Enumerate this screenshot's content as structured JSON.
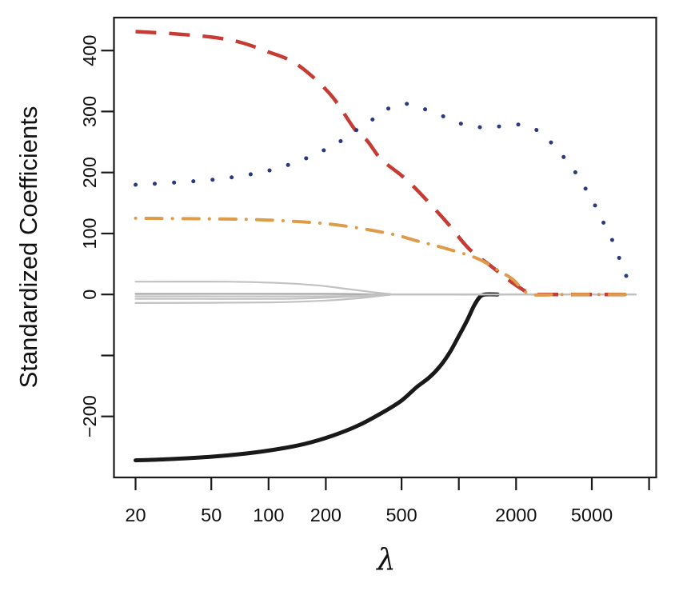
{
  "chart_data": {
    "type": "line",
    "title": "",
    "xlabel": "λ",
    "ylabel": "Standardized Coefficients",
    "x_scale": "log10",
    "xlim": [
      15.4,
      10900
    ],
    "ylim": [
      -300,
      454
    ],
    "grid": false,
    "legend": "none",
    "background_color": "#ffffff",
    "axis_color": "#1a1a1a",
    "tick_label_color": "#111111",
    "x_ticks": [
      {
        "v": 20,
        "label": "20"
      },
      {
        "v": 50,
        "label": "50"
      },
      {
        "v": 100,
        "label": "100"
      },
      {
        "v": 200,
        "label": "200"
      },
      {
        "v": 500,
        "label": "500"
      },
      {
        "v": 1000,
        "label": ""
      },
      {
        "v": 2000,
        "label": "2000"
      },
      {
        "v": 5000,
        "label": "5000"
      },
      {
        "v": 10000,
        "label": ""
      }
    ],
    "y_ticks": [
      {
        "v": 400,
        "label": "400"
      },
      {
        "v": 300,
        "label": "300"
      },
      {
        "v": 200,
        "label": "200"
      },
      {
        "v": 100,
        "label": "100"
      },
      {
        "v": 0,
        "label": "0"
      },
      {
        "v": -100,
        "label": ""
      },
      {
        "v": -200,
        "label": "−200"
      }
    ],
    "series": [
      {
        "name": "black-solid",
        "color": "#191919",
        "style": "solid",
        "width": 5,
        "points": [
          [
            20,
            -272
          ],
          [
            30,
            -270
          ],
          [
            50,
            -266
          ],
          [
            70,
            -262
          ],
          [
            100,
            -256
          ],
          [
            150,
            -246
          ],
          [
            215,
            -232
          ],
          [
            300,
            -214
          ],
          [
            410,
            -191
          ],
          [
            500,
            -174
          ],
          [
            600,
            -152
          ],
          [
            700,
            -136
          ],
          [
            800,
            -117
          ],
          [
            900,
            -94
          ],
          [
            1000,
            -68
          ],
          [
            1100,
            -44
          ],
          [
            1200,
            -19
          ],
          [
            1290,
            -4
          ],
          [
            1380,
            0
          ],
          [
            1600,
            0
          ]
        ]
      },
      {
        "name": "gray-1",
        "color": "#c2c2c2",
        "style": "solid",
        "width": 2.2,
        "points": [
          [
            20,
            21
          ],
          [
            60,
            21
          ],
          [
            110,
            19
          ],
          [
            180,
            15
          ],
          [
            260,
            9
          ],
          [
            350,
            4
          ],
          [
            430,
            1
          ],
          [
            520,
            0
          ],
          [
            2000,
            0
          ],
          [
            5000,
            0
          ],
          [
            8500,
            0
          ]
        ]
      },
      {
        "name": "gray-2",
        "color": "#a6a6a6",
        "style": "solid",
        "width": 2.2,
        "points": [
          [
            20,
            1
          ],
          [
            200,
            1
          ],
          [
            400,
            0
          ],
          [
            2000,
            0
          ],
          [
            8500,
            0
          ]
        ]
      },
      {
        "name": "gray-3",
        "color": "#c2c2c2",
        "style": "solid",
        "width": 2.2,
        "points": [
          [
            20,
            -3
          ],
          [
            150,
            -3
          ],
          [
            300,
            -2
          ],
          [
            430,
            0
          ],
          [
            2000,
            0
          ],
          [
            8500,
            0
          ]
        ]
      },
      {
        "name": "gray-4",
        "color": "#c2c2c2",
        "style": "solid",
        "width": 2.2,
        "points": [
          [
            20,
            -7
          ],
          [
            120,
            -7
          ],
          [
            250,
            -4
          ],
          [
            400,
            -1
          ],
          [
            500,
            0
          ],
          [
            2000,
            0
          ],
          [
            8500,
            0
          ]
        ]
      },
      {
        "name": "gray-5",
        "color": "#c2c2c2",
        "style": "solid",
        "width": 2.2,
        "points": [
          [
            20,
            -14
          ],
          [
            100,
            -13
          ],
          [
            200,
            -10
          ],
          [
            300,
            -6
          ],
          [
            420,
            -1
          ],
          [
            520,
            0
          ],
          [
            2000,
            0
          ],
          [
            8500,
            0
          ]
        ]
      },
      {
        "name": "red-dashed",
        "color": "#c63c35",
        "style": "dashed",
        "width": 4.5,
        "points": [
          [
            20,
            431
          ],
          [
            30,
            428
          ],
          [
            50,
            422
          ],
          [
            70,
            414
          ],
          [
            95,
            400
          ],
          [
            140,
            378
          ],
          [
            210,
            329
          ],
          [
            285,
            270
          ],
          [
            330,
            252
          ],
          [
            390,
            222
          ],
          [
            500,
            195
          ],
          [
            600,
            172
          ],
          [
            855,
            120
          ],
          [
            1130,
            75
          ],
          [
            1470,
            47
          ],
          [
            1900,
            20
          ],
          [
            2300,
            3
          ],
          [
            2450,
            0
          ],
          [
            3500,
            0
          ],
          [
            5500,
            0
          ],
          [
            8500,
            0
          ]
        ]
      },
      {
        "name": "orange-dashdot",
        "color": "#dd9c49",
        "style": "dashdot",
        "width": 4,
        "dash_offset": 33,
        "points": [
          [
            20,
            125
          ],
          [
            50,
            124
          ],
          [
            100,
            122
          ],
          [
            215,
            115
          ],
          [
            430,
            100
          ],
          [
            600,
            88
          ],
          [
            820,
            77
          ],
          [
            1230,
            60
          ],
          [
            1600,
            40
          ],
          [
            1900,
            26
          ],
          [
            2100,
            13
          ],
          [
            2400,
            0
          ],
          [
            3500,
            0
          ],
          [
            5500,
            0
          ],
          [
            8500,
            0
          ]
        ]
      },
      {
        "name": "blue-dotted",
        "color": "#2b3a7d",
        "style": "dotted",
        "width": 5,
        "points": [
          [
            20,
            180
          ],
          [
            30,
            183
          ],
          [
            50,
            188
          ],
          [
            70,
            194
          ],
          [
            100,
            203
          ],
          [
            140,
            217
          ],
          [
            185,
            233
          ],
          [
            235,
            250
          ],
          [
            285,
            268
          ],
          [
            345,
            285
          ],
          [
            410,
            302
          ],
          [
            480,
            311
          ],
          [
            560,
            312
          ],
          [
            660,
            304
          ],
          [
            830,
            292
          ],
          [
            1030,
            280
          ],
          [
            1330,
            274
          ],
          [
            1700,
            276
          ],
          [
            2200,
            278
          ],
          [
            2760,
            263
          ],
          [
            3270,
            238
          ],
          [
            3860,
            212
          ],
          [
            4420,
            184
          ],
          [
            5080,
            152
          ],
          [
            5630,
            124
          ],
          [
            6320,
            93
          ],
          [
            6940,
            61
          ],
          [
            7600,
            30
          ],
          [
            8300,
            24
          ]
        ]
      }
    ]
  }
}
